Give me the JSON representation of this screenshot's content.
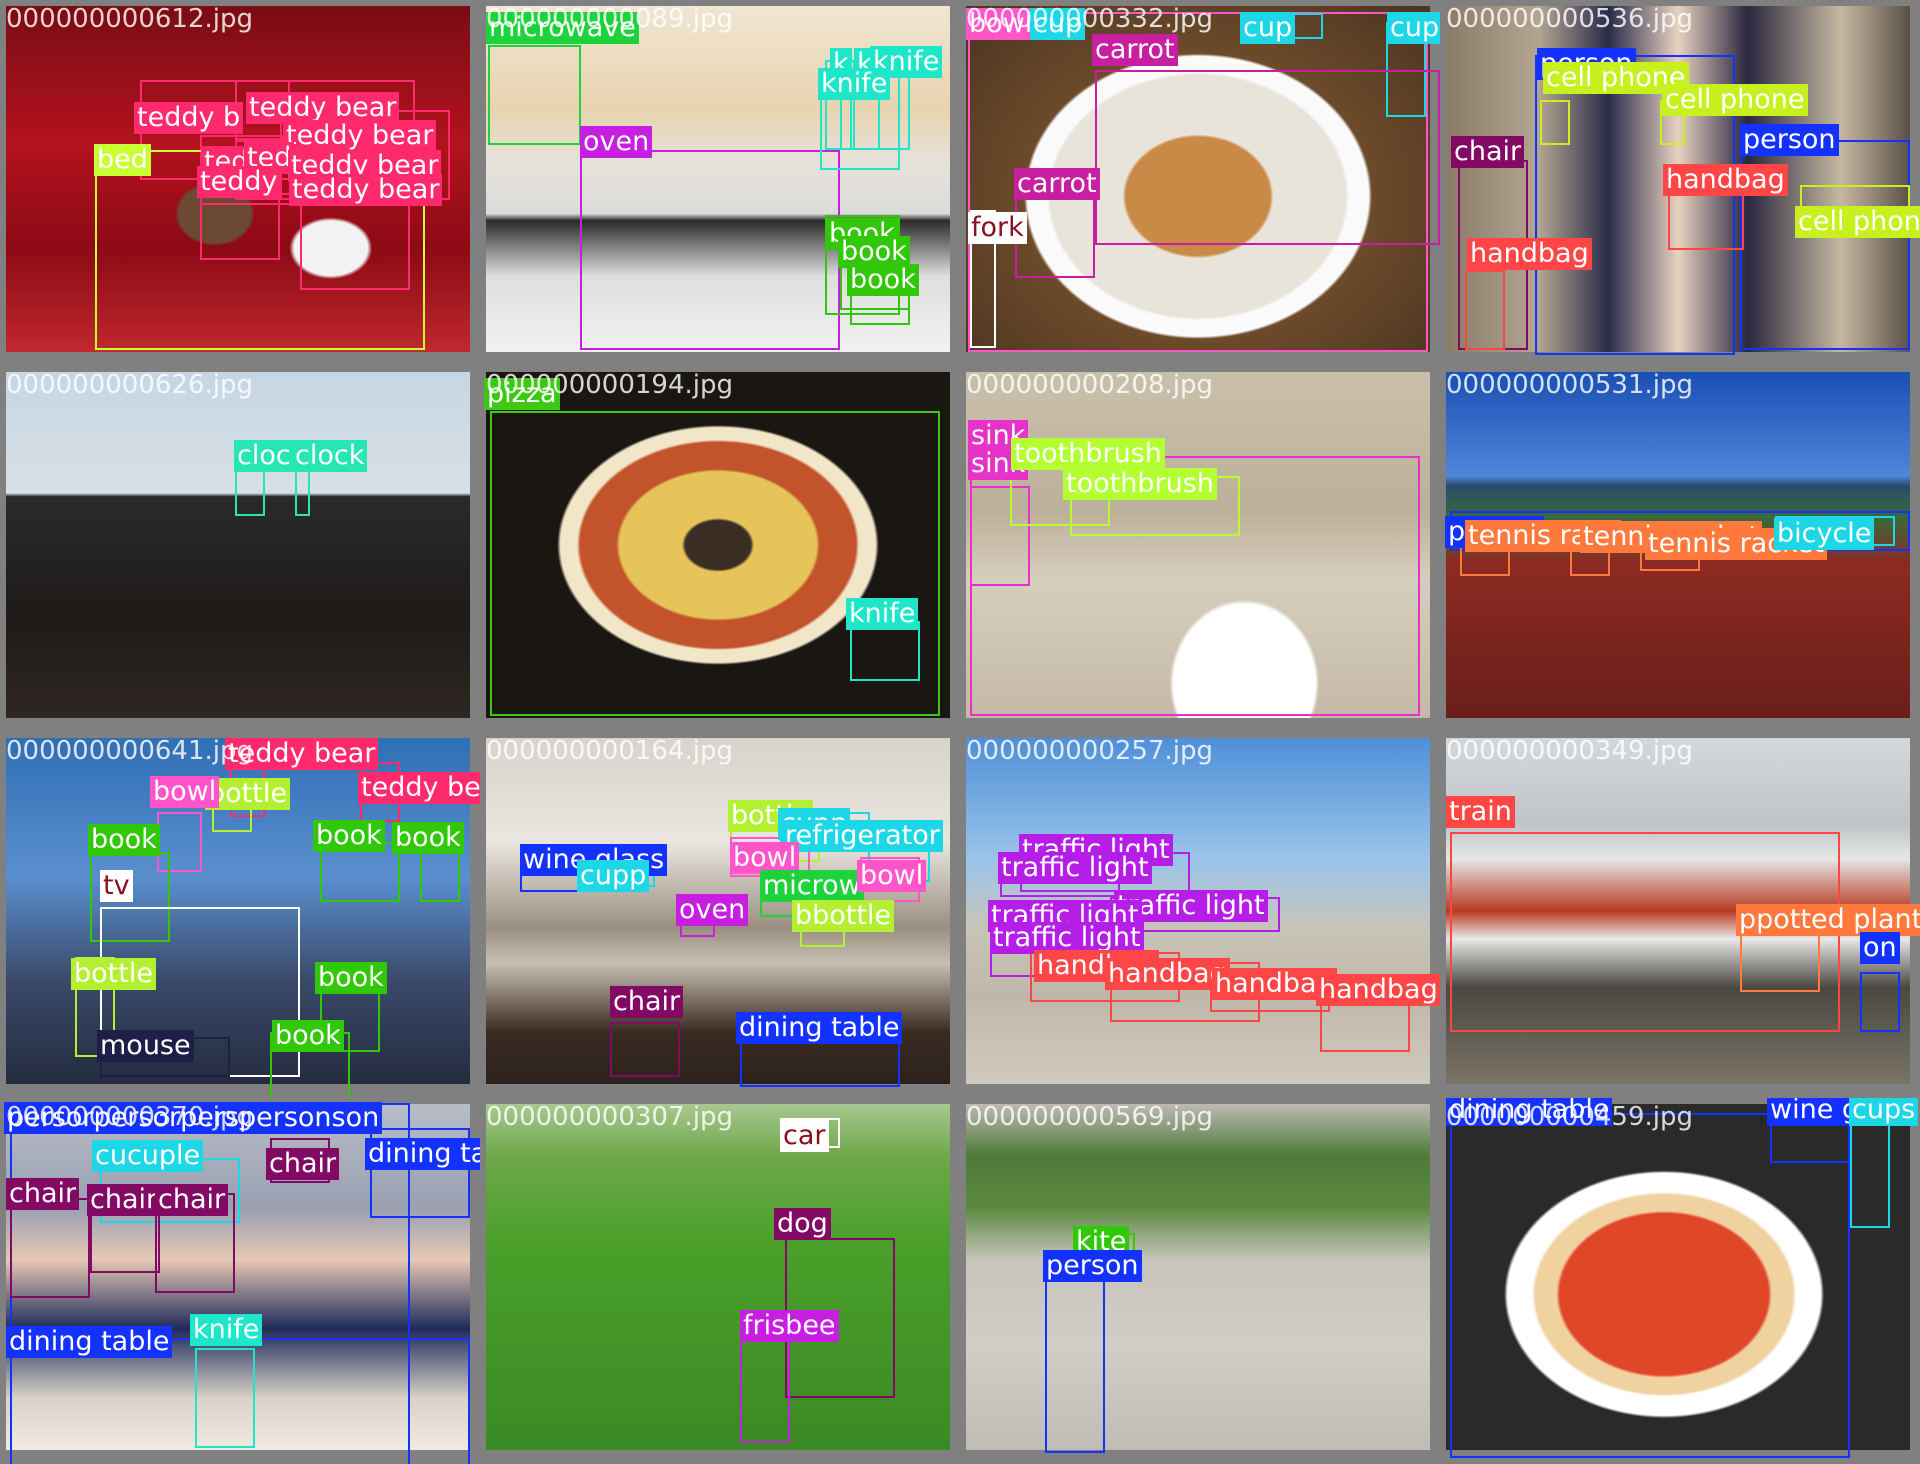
{
  "colors": {
    "background": "#7f7f7f"
  },
  "tiles": [
    {
      "filename": "000000000612.jpg",
      "scene": "christmas-red",
      "boxes": [
        {
          "label": "teddy bear",
          "color": "#ff2a6d",
          "display": "teddy b"
        },
        {
          "label": "teddy bear",
          "color": "#ff2a6d",
          "display": "teddy bear"
        },
        {
          "label": "teddy bear",
          "color": "#ff2a6d",
          "display": "teddy bear"
        },
        {
          "label": "teddy bear",
          "color": "#ff2a6d",
          "display": "ted"
        },
        {
          "label": "teddy bear",
          "color": "#ff2a6d",
          "display": "ted"
        },
        {
          "label": "teddy bear",
          "color": "#ff2a6d",
          "display": "teddy bear"
        },
        {
          "label": "teddy bear",
          "color": "#ff2a6d",
          "display": "teddy"
        },
        {
          "label": "teddy bear",
          "color": "#ff2a6d",
          "display": "teddy bear"
        },
        {
          "label": "bed",
          "color": "#c8ff32",
          "display": "bed"
        }
      ]
    },
    {
      "filename": "000000000089.jpg",
      "scene": "kitchen-stove",
      "boxes": [
        {
          "label": "microwave",
          "color": "#1ed23c",
          "display": "microwave"
        },
        {
          "label": "oven",
          "color": "#c81ee1",
          "display": "oven"
        },
        {
          "label": "knife",
          "color": "#1ee6c8",
          "display": "k"
        },
        {
          "label": "knife",
          "color": "#1ee6c8",
          "display": "k"
        },
        {
          "label": "knife",
          "color": "#1ee6c8",
          "display": "knife"
        },
        {
          "label": "knife",
          "color": "#1ee6c8",
          "display": "knife"
        },
        {
          "label": "book",
          "color": "#32c80a",
          "display": "book"
        },
        {
          "label": "book",
          "color": "#32c80a",
          "display": "book"
        },
        {
          "label": "book",
          "color": "#32c80a",
          "display": "book"
        }
      ]
    },
    {
      "filename": "000000000332.jpg",
      "scene": "noodle-bowl",
      "boxes": [
        {
          "label": "bowl",
          "color": "#ff55c8",
          "display": "bowl"
        },
        {
          "label": "cup",
          "color": "#1ed7e6",
          "display": "cup"
        },
        {
          "label": "cup",
          "color": "#1ed7e6",
          "display": "cup"
        },
        {
          "label": "cup",
          "color": "#1ed7e6",
          "display": "cup"
        },
        {
          "label": "carrot",
          "color": "#c81ea0",
          "display": "carrot"
        },
        {
          "label": "carrot",
          "color": "#c81ea0",
          "display": "carrot"
        },
        {
          "label": "fork",
          "color": "#ffffff",
          "display": "fork"
        }
      ]
    },
    {
      "filename": "000000000536.jpg",
      "scene": "party-people",
      "boxes": [
        {
          "label": "person",
          "color": "#1432ff",
          "display": "person"
        },
        {
          "label": "cell phone",
          "color": "#c8f01e",
          "display": "cell phone"
        },
        {
          "label": "cell phone",
          "color": "#c8f01e",
          "display": "cell phone"
        },
        {
          "label": "person",
          "color": "#1432ff",
          "display": "person"
        },
        {
          "label": "chair",
          "color": "#820a64",
          "display": "chair"
        },
        {
          "label": "handbag",
          "color": "#ff4646",
          "display": "handbag"
        },
        {
          "label": "handbag",
          "color": "#ff4646",
          "display": "handbag"
        },
        {
          "label": "cell phone",
          "color": "#c8f01e",
          "display": "cell phone"
        }
      ]
    },
    {
      "filename": "000000000626.jpg",
      "scene": "clock-tower",
      "boxes": [
        {
          "label": "clock",
          "color": "#28e6b4",
          "display": "cloc"
        },
        {
          "label": "clock",
          "color": "#28e6b4",
          "display": "clock"
        }
      ]
    },
    {
      "filename": "000000000194.jpg",
      "scene": "pizza-close",
      "boxes": [
        {
          "label": "pizza",
          "color": "#3cc814",
          "display": "pizza"
        },
        {
          "label": "knife",
          "color": "#1ee6c8",
          "display": "knife"
        }
      ]
    },
    {
      "filename": "000000000208.jpg",
      "scene": "sink",
      "boxes": [
        {
          "label": "sink",
          "color": "#e632c8",
          "display": "sink"
        },
        {
          "label": "sink",
          "color": "#e632c8",
          "display": "sink"
        },
        {
          "label": "toothbrush",
          "color": "#b4ff32",
          "display": "toothbrush"
        },
        {
          "label": "toothbrush",
          "color": "#b4ff32",
          "display": "toothbrush"
        }
      ]
    },
    {
      "filename": "000000000531.jpg",
      "scene": "tennis-court",
      "boxes": [
        {
          "label": "person",
          "color": "#1432ff",
          "display": "person"
        },
        {
          "label": "tennis racket",
          "color": "#ff783c",
          "display": "tennis rack"
        },
        {
          "label": "tennis racket",
          "color": "#ff783c",
          "display": "tennis racket"
        },
        {
          "label": "tennis racket",
          "color": "#ff783c",
          "display": "tennis racket"
        },
        {
          "label": "bicycle",
          "color": "#1ed7e6",
          "display": "bicycle"
        }
      ]
    },
    {
      "filename": "000000000641.jpg",
      "scene": "blue-room",
      "boxes": [
        {
          "label": "teddy bear",
          "color": "#ff2a6d",
          "display": "teddy bear"
        },
        {
          "label": "teddy bear",
          "color": "#ff2a6d",
          "display": "teddy bear"
        },
        {
          "label": "bottle",
          "color": "#b4f032",
          "display": "bottle"
        },
        {
          "label": "bowl",
          "color": "#ff55c8",
          "display": "bowl"
        },
        {
          "label": "book",
          "color": "#32c80a",
          "display": "book"
        },
        {
          "label": "book",
          "color": "#32c80a",
          "display": "book"
        },
        {
          "label": "book",
          "color": "#32c80a",
          "display": "book"
        },
        {
          "label": "tv",
          "color": "#ffffff",
          "display": "tv"
        },
        {
          "label": "bottle",
          "color": "#b4f032",
          "display": "bottle"
        },
        {
          "label": "book",
          "color": "#32c80a",
          "display": "book"
        },
        {
          "label": "book",
          "color": "#32c80a",
          "display": "book"
        },
        {
          "label": "mouse",
          "color": "#1e1e46",
          "display": "mouse"
        }
      ]
    },
    {
      "filename": "000000000164.jpg",
      "scene": "kitchen-room",
      "boxes": [
        {
          "label": "bottle",
          "color": "#b4f032",
          "display": "bottle"
        },
        {
          "label": "cup",
          "color": "#1ed7e6",
          "display": "cupp"
        },
        {
          "label": "refrigerator",
          "color": "#1ed7e6",
          "display": "refrigerator"
        },
        {
          "label": "wine glass",
          "color": "#1432ff",
          "display": "wine glass"
        },
        {
          "label": "cup",
          "color": "#1ed7e6",
          "display": "cupp"
        },
        {
          "label": "bowl",
          "color": "#ff55c8",
          "display": "bowl"
        },
        {
          "label": "microwave",
          "color": "#1ed23c",
          "display": "microw"
        },
        {
          "label": "bowl",
          "color": "#ff55c8",
          "display": "bowl"
        },
        {
          "label": "oven",
          "color": "#c81ee1",
          "display": "oven"
        },
        {
          "label": "bottle",
          "color": "#b4f032",
          "display": "bbottle"
        },
        {
          "label": "chair",
          "color": "#820a64",
          "display": "chair"
        },
        {
          "label": "dining table",
          "color": "#1432ff",
          "display": "dining table"
        }
      ]
    },
    {
      "filename": "000000000257.jpg",
      "scene": "plaza",
      "boxes": [
        {
          "label": "traffic light",
          "color": "#b41ee6",
          "display": "traffic light"
        },
        {
          "label": "traffic light",
          "color": "#b41ee6",
          "display": "traffic light"
        },
        {
          "label": "traffic light",
          "color": "#b41ee6",
          "display": "traffic light"
        },
        {
          "label": "traffic light",
          "color": "#b41ee6",
          "display": "traffic light"
        },
        {
          "label": "traffic light",
          "color": "#b41ee6",
          "display": "traffic light"
        },
        {
          "label": "handbag",
          "color": "#ff4646",
          "display": "handbag"
        },
        {
          "label": "handbag",
          "color": "#ff4646",
          "display": "handbag"
        },
        {
          "label": "handbag",
          "color": "#ff4646",
          "display": "handbag"
        },
        {
          "label": "handbag",
          "color": "#ff4646",
          "display": "handbag"
        }
      ]
    },
    {
      "filename": "000000000349.jpg",
      "scene": "train",
      "boxes": [
        {
          "label": "train",
          "color": "#ff4646",
          "display": "train"
        },
        {
          "label": "potted plant",
          "color": "#ff783c",
          "display": "ppotted plant"
        },
        {
          "label": "person",
          "color": "#1432ff",
          "display": "on"
        }
      ]
    },
    {
      "filename": "000000000370.jpg",
      "scene": "dinner",
      "boxes": [
        {
          "label": "person",
          "color": "#1432ff",
          "display": "persorpersorperspersonson"
        },
        {
          "label": "cup",
          "color": "#1ed7e6",
          "display": "cucuple"
        },
        {
          "label": "chair",
          "color": "#820a64",
          "display": "chair"
        },
        {
          "label": "dining table",
          "color": "#1432ff",
          "display": "dining table"
        },
        {
          "label": "chair",
          "color": "#820a64",
          "display": "chair"
        },
        {
          "label": "chair",
          "color": "#820a64",
          "display": "chair"
        },
        {
          "label": "chair",
          "color": "#820a64",
          "display": "chair"
        },
        {
          "label": "dining table",
          "color": "#1432ff",
          "display": "dining table"
        },
        {
          "label": "knife",
          "color": "#1ee6c8",
          "display": "knife"
        }
      ]
    },
    {
      "filename": "000000000307.jpg",
      "scene": "grass-dog",
      "boxes": [
        {
          "label": "car",
          "color": "#ffffff",
          "display": "car"
        },
        {
          "label": "dog",
          "color": "#820a64",
          "display": "dog"
        },
        {
          "label": "frisbee",
          "color": "#c81ee1",
          "display": "frisbee"
        }
      ]
    },
    {
      "filename": "000000000569.jpg",
      "scene": "park-kite",
      "boxes": [
        {
          "label": "kite",
          "color": "#32c80a",
          "display": "kite"
        },
        {
          "label": "person",
          "color": "#1432ff",
          "display": "person"
        }
      ]
    },
    {
      "filename": "000000000459.jpg",
      "scene": "margherita",
      "boxes": [
        {
          "label": "dining table",
          "color": "#1432ff",
          "display": "dining table"
        },
        {
          "label": "wine glass",
          "color": "#1432ff",
          "display": "wine g"
        },
        {
          "label": "cup",
          "color": "#1ed7e6",
          "display": "cups"
        }
      ]
    }
  ]
}
